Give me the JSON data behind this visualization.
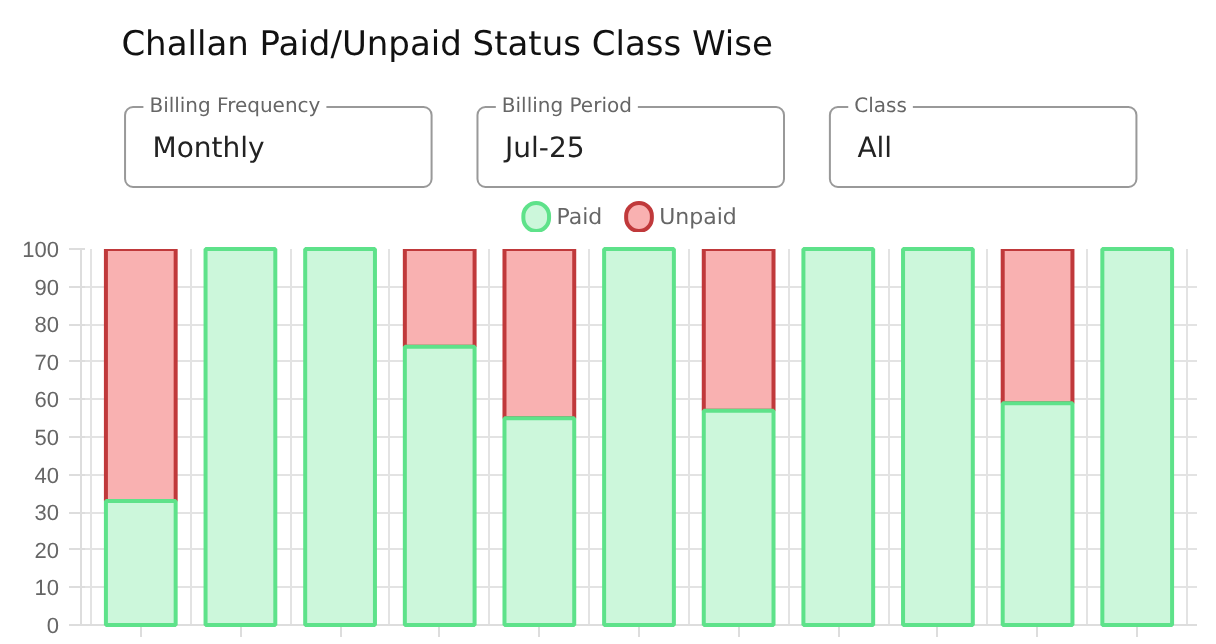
{
  "chart_data": {
    "type": "bar",
    "title": "Challan Paid/Unpaid Status Class Wise",
    "stacked": true,
    "annotations": [
      "Billing Frequency",
      "Monthly",
      "Billing Period",
      "Jul-25",
      "Class",
      "All"
    ],
    "categories": [
      null,
      null,
      null,
      null,
      null,
      null,
      null,
      null,
      null,
      null,
      null
    ],
    "series": [
      {
        "name": "Paid",
        "color": "#ccf7db",
        "values": [
          33,
          100,
          100,
          74,
          55,
          100,
          57,
          100,
          100,
          59,
          100
        ]
      },
      {
        "name": "Unpaid",
        "color": "#f9b1b1",
        "values": [
          67,
          0,
          0,
          26,
          45,
          0,
          43,
          0,
          0,
          41,
          0
        ]
      }
    ],
    "ylim": [
      0,
      100
    ],
    "yticks": [
      0,
      10,
      20,
      30,
      40,
      50,
      60,
      70,
      80,
      90,
      100
    ],
    "grid": true,
    "legend": "top",
    "tick_labels": "y"
  }
}
